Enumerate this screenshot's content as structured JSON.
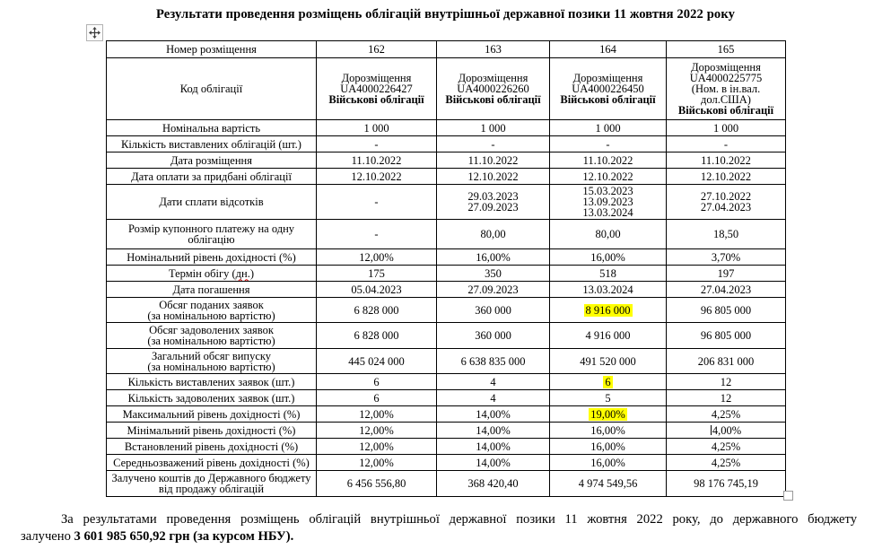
{
  "title": "Результати проведення розміщень облігацій внутрішньої державної позики 11 жовтня 2022 року",
  "icons": {
    "table_move_handle": "move-cross-icon",
    "table_resize_handle": "resize-square-icon"
  },
  "colors": {
    "highlight": "#ffff00",
    "spellcheck_underline": "#dd0000"
  },
  "table": {
    "rows": [
      {
        "label": [
          "Номер розміщення"
        ],
        "cells": [
          [
            "162"
          ],
          [
            "163"
          ],
          [
            "164"
          ],
          [
            "165"
          ]
        ]
      },
      {
        "label": [
          "Код облігації"
        ],
        "cells": [
          [
            "Дорозміщення",
            "UA4000226427",
            {
              "text": "Військові облігації",
              "bold": true
            }
          ],
          [
            "Дорозміщення",
            "UA4000226260",
            {
              "text": "Військові облігації",
              "bold": true
            }
          ],
          [
            "Дорозміщення",
            "UA4000226450",
            {
              "text": "Військові облігації",
              "bold": true
            }
          ],
          [
            "Дорозміщення",
            "UA4000225775",
            "(Ном. в ін.вал.",
            "дол.США)",
            {
              "text": "Військові облігації",
              "bold": true
            }
          ]
        ]
      },
      {
        "label": [
          "Номінальна вартість"
        ],
        "cells": [
          [
            "1 000"
          ],
          [
            "1 000"
          ],
          [
            "1 000"
          ],
          [
            "1 000"
          ]
        ]
      },
      {
        "label": [
          "Кількість виставлених облігацій (шт.)"
        ],
        "cells": [
          [
            "-"
          ],
          [
            "-"
          ],
          [
            "-"
          ],
          [
            "-"
          ]
        ]
      },
      {
        "label": [
          "Дата розміщення"
        ],
        "cells": [
          [
            "11.10.2022"
          ],
          [
            "11.10.2022"
          ],
          [
            "11.10.2022"
          ],
          [
            "11.10.2022"
          ]
        ]
      },
      {
        "label": [
          "Дата оплати за придбані облігації"
        ],
        "cells": [
          [
            "12.10.2022"
          ],
          [
            "12.10.2022"
          ],
          [
            "12.10.2022"
          ],
          [
            "12.10.2022"
          ]
        ]
      },
      {
        "label": [
          "Дати сплати відсотків"
        ],
        "cells": [
          [
            "-"
          ],
          [
            "29.03.2023",
            "27.09.2023"
          ],
          [
            "15.03.2023",
            "13.09.2023",
            "13.03.2024"
          ],
          [
            "27.10.2022",
            "27.04.2023"
          ]
        ]
      },
      {
        "label": [
          "Розмір купонного платежу на одну",
          "облігацію"
        ],
        "cells": [
          [
            "-"
          ],
          [
            "80,00"
          ],
          [
            "80,00"
          ],
          [
            "18,50"
          ]
        ]
      },
      {
        "label": [
          "Номінальний рівень дохідності (%)"
        ],
        "cells": [
          [
            "12,00%"
          ],
          [
            "16,00%"
          ],
          [
            "16,00%"
          ],
          [
            "3,70%"
          ]
        ]
      },
      {
        "label": [
          {
            "text": "Термін обігу (дн.)",
            "spell_word": "дн."
          }
        ],
        "cells": [
          [
            "175"
          ],
          [
            "350"
          ],
          [
            "518"
          ],
          [
            "197"
          ]
        ]
      },
      {
        "label": [
          "Дата погашення"
        ],
        "cells": [
          [
            "05.04.2023"
          ],
          [
            "27.09.2023"
          ],
          [
            "13.03.2024"
          ],
          [
            "27.04.2023"
          ]
        ]
      },
      {
        "label": [
          "Обсяг поданих заявок",
          "(за номінальною вартістю)"
        ],
        "cells": [
          [
            "6 828 000"
          ],
          [
            "360 000"
          ],
          [
            {
              "text": "8 916 000",
              "highlight": true
            }
          ],
          [
            "96 805 000"
          ]
        ]
      },
      {
        "label": [
          "Обсяг задоволених заявок",
          "(за номінальною вартістю)"
        ],
        "cells": [
          [
            "6 828 000"
          ],
          [
            "360 000"
          ],
          [
            "4 916 000"
          ],
          [
            "96 805 000"
          ]
        ]
      },
      {
        "label": [
          "Загальний обсяг випуску",
          "(за номінальною вартістю)"
        ],
        "cells": [
          [
            "445 024 000"
          ],
          [
            "6 638 835 000"
          ],
          [
            "491 520 000"
          ],
          [
            "206 831 000"
          ]
        ]
      },
      {
        "label": [
          "Кількість виставлених заявок (шт.)"
        ],
        "cells": [
          [
            "6"
          ],
          [
            "4"
          ],
          [
            {
              "text": "6",
              "highlight": true
            }
          ],
          [
            "12"
          ]
        ]
      },
      {
        "label": [
          "Кількість задоволених заявок (шт.)"
        ],
        "cells": [
          [
            "6"
          ],
          [
            "4"
          ],
          [
            "5"
          ],
          [
            "12"
          ]
        ]
      },
      {
        "label": [
          "Максимальний рівень дохідності (%)"
        ],
        "cells": [
          [
            "12,00%"
          ],
          [
            "14,00%"
          ],
          [
            {
              "text": "19,00%",
              "highlight": true
            }
          ],
          [
            "4,25%"
          ]
        ]
      },
      {
        "label": [
          "Мінімальний рівень дохідності (%)"
        ],
        "cells": [
          [
            "12,00%"
          ],
          [
            "14,00%"
          ],
          [
            "16,00%"
          ],
          [
            {
              "text": "4,00%",
              "cursor": true
            }
          ]
        ]
      },
      {
        "label": [
          "Встановлений рівень дохідності (%)"
        ],
        "cells": [
          [
            "12,00%"
          ],
          [
            "14,00%"
          ],
          [
            "16,00%"
          ],
          [
            "4,25%"
          ]
        ]
      },
      {
        "label": [
          "Середньозважений рівень дохідності (%)"
        ],
        "cells": [
          [
            "12,00%"
          ],
          [
            "14,00%"
          ],
          [
            "16,00%"
          ],
          [
            "4,25%"
          ]
        ]
      },
      {
        "label": [
          "Залучено коштів до Державного бюджету",
          "від продажу облігацій"
        ],
        "cells": [
          [
            "6 456 556,80"
          ],
          [
            "368 420,40"
          ],
          [
            "4 974 549,56"
          ],
          [
            "98 176 745,19"
          ]
        ]
      }
    ]
  },
  "closing": {
    "line1": "За результатами проведення розміщень облігацій внутрішньої державної позики 11 жовтня 2022 року, до державного бюджету",
    "line2_normal": "залучено ",
    "line2_bold": "3 601 985 650,92 грн (за курсом НБУ)."
  }
}
